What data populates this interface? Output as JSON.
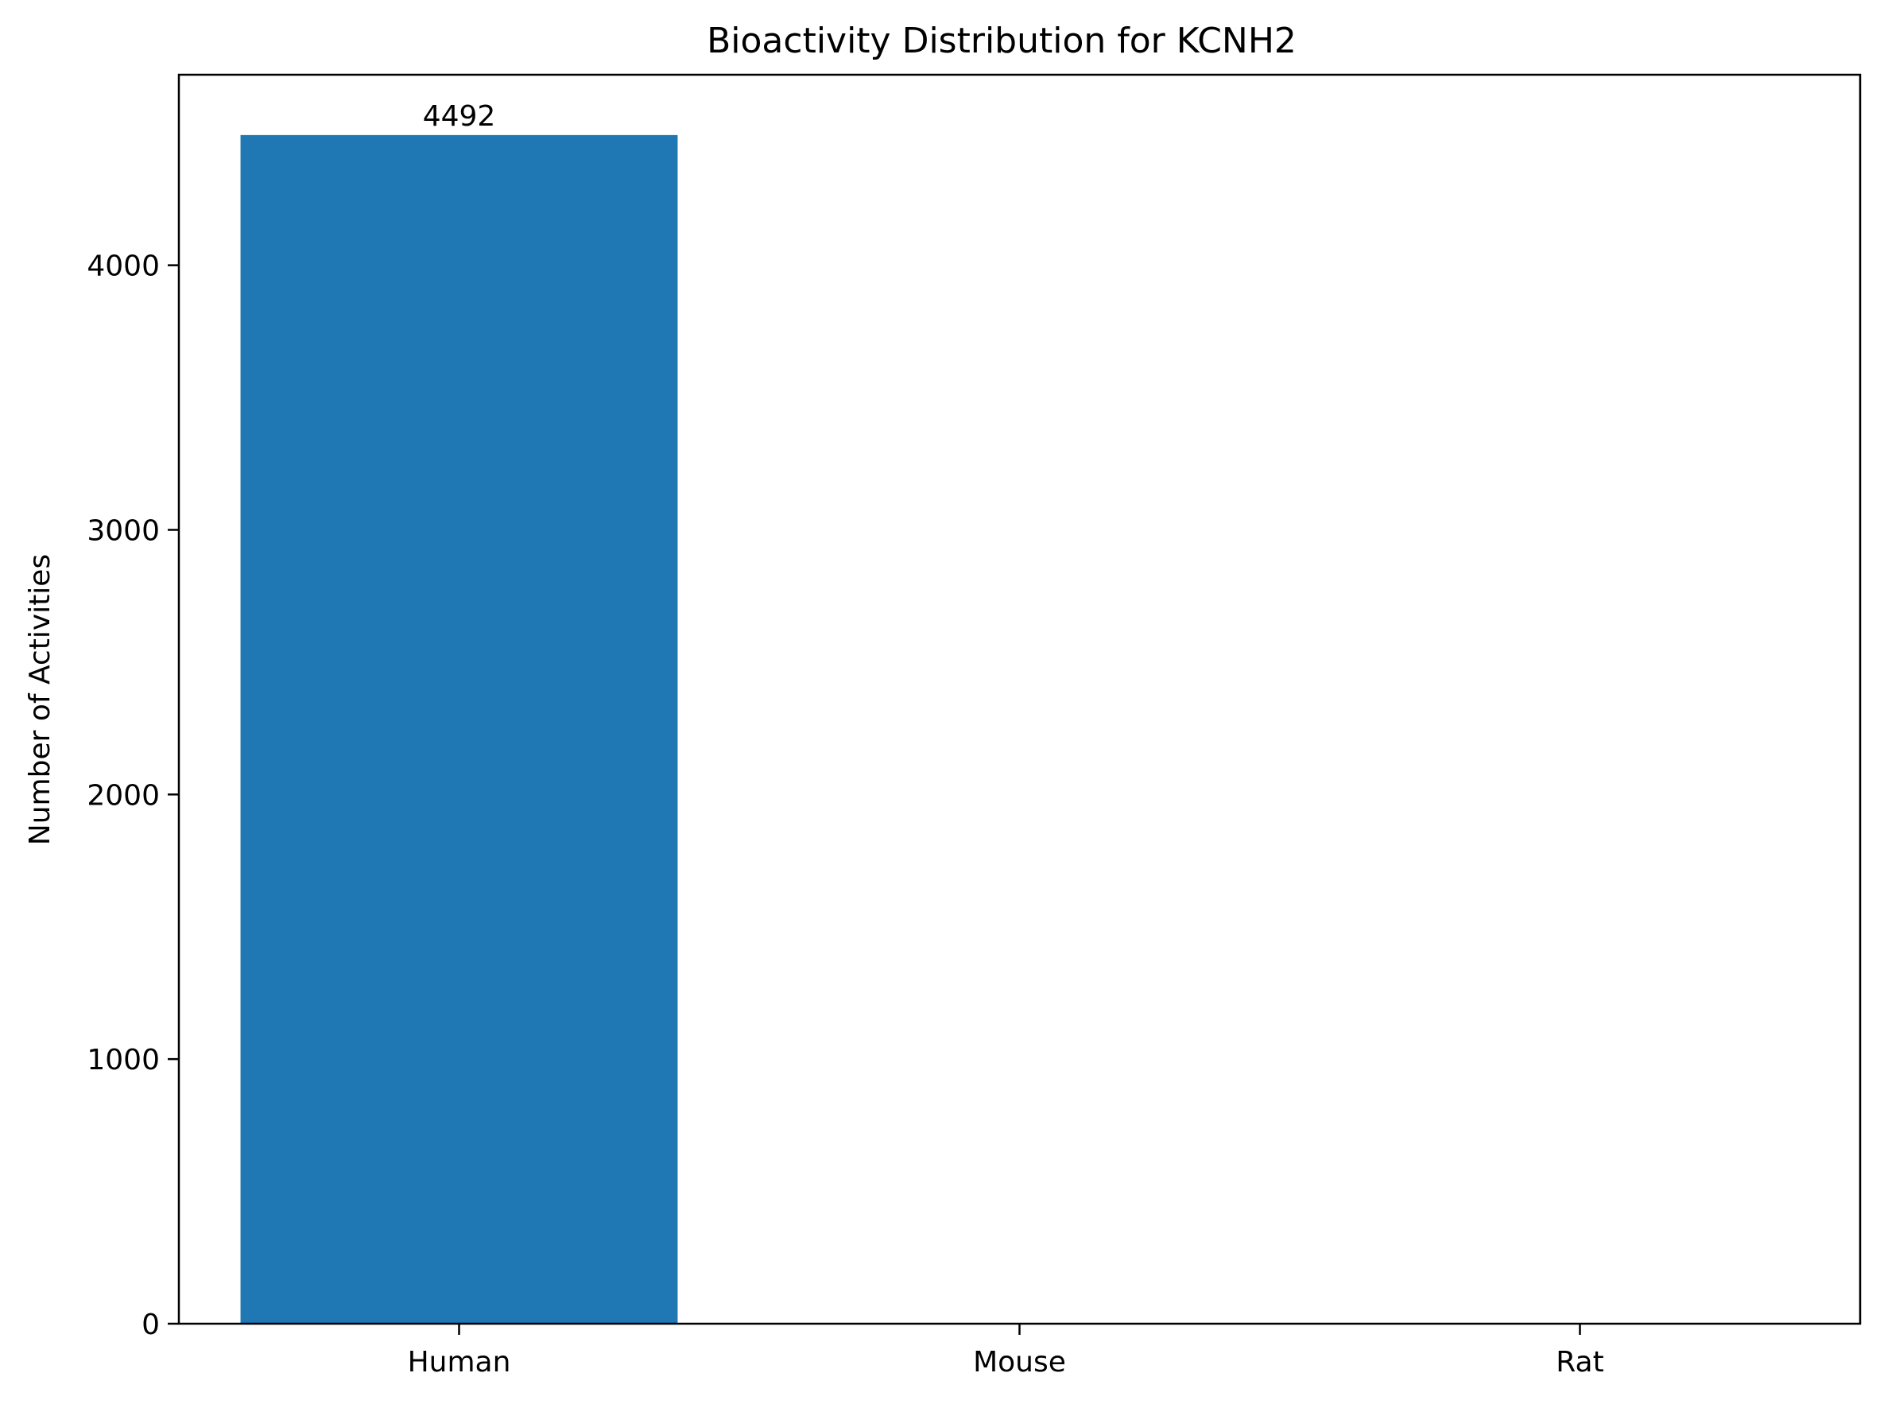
{
  "chart_data": {
    "type": "bar",
    "title": "Bioactivity Distribution for KCNH2",
    "xlabel": "",
    "ylabel": "Number of Activities",
    "categories": [
      "Human",
      "Mouse",
      "Rat"
    ],
    "values": [
      4492,
      0,
      0
    ],
    "data_labels": [
      "4492",
      "",
      ""
    ],
    "ylim": [
      0,
      4720
    ],
    "yticks": [
      0,
      1000,
      2000,
      3000,
      4000
    ],
    "bar_color": "#1f77b4",
    "grid": false,
    "legend": "none"
  }
}
